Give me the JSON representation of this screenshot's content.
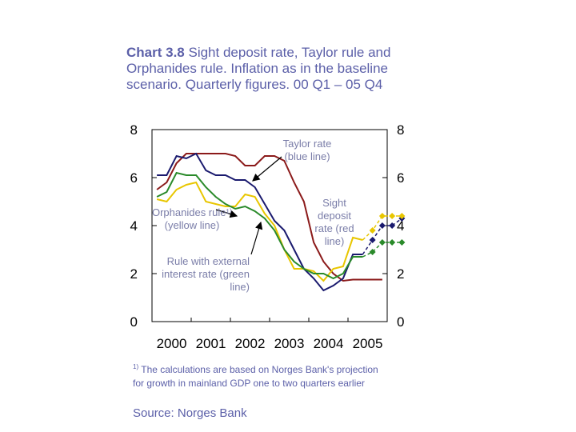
{
  "title": {
    "bold": "Chart 3.8",
    "rest": "Sight deposit rate, Taylor rule and Orphanides rule. Inflation as in the baseline scenario. Quarterly figures. 00 Q1 – 05 Q4"
  },
  "footnote": {
    "marker": "1)",
    "text": "The calculations are based on Norges Bank's projection for growth in mainland GDP one to two quarters earlier"
  },
  "source": "Source: Norges Bank",
  "annotations": {
    "taylor": [
      "Taylor rate",
      "(blue line)"
    ],
    "orphanides": [
      "Orphanides rule¹⁾",
      "(yellow line)"
    ],
    "external": [
      "Rule with external",
      "interest rate (green",
      "line)"
    ],
    "sight": [
      "Sight",
      "deposit",
      "rate (red",
      "line)"
    ]
  },
  "chart_data": {
    "type": "line",
    "x_start": 2000,
    "points_per_year": 4,
    "xticks": [
      "2000",
      "2001",
      "2002",
      "2003",
      "2004",
      "2005"
    ],
    "ylim": [
      0,
      8
    ],
    "yticks": [
      0,
      2,
      4,
      6,
      8
    ],
    "grid": false,
    "series": [
      {
        "name": "Sight deposit rate",
        "color": "#8b1a1a",
        "values": [
          5.5,
          5.8,
          6.6,
          7.0,
          7.0,
          7.0,
          7.0,
          7.0,
          6.9,
          6.5,
          6.5,
          6.9,
          6.9,
          6.7,
          5.8,
          5.0,
          3.3,
          2.5,
          2.0,
          1.7,
          1.75,
          1.75,
          1.75,
          1.75
        ],
        "projection_start": null
      },
      {
        "name": "Taylor rate",
        "color": "#1a1a6e",
        "values": [
          6.1,
          6.1,
          6.9,
          6.8,
          7.0,
          6.3,
          6.1,
          6.1,
          5.9,
          5.9,
          5.6,
          4.9,
          4.2,
          3.8,
          3.0,
          2.2,
          1.8,
          1.3,
          1.5,
          1.8,
          2.8,
          2.8,
          3.4,
          4.0,
          4.0,
          4.3
        ],
        "projection_start": 22
      },
      {
        "name": "Orphanides rule",
        "color": "#e8c600",
        "values": [
          5.1,
          5.0,
          5.5,
          5.7,
          5.8,
          5.0,
          4.9,
          4.8,
          4.8,
          5.3,
          5.2,
          4.5,
          4.0,
          3.0,
          2.2,
          2.2,
          2.1,
          1.7,
          2.2,
          2.3,
          3.5,
          3.4,
          3.8,
          4.4,
          4.4,
          4.4
        ],
        "projection_start": 22
      },
      {
        "name": "Rule with external interest rate",
        "color": "#2a8a2a",
        "values": [
          5.2,
          5.4,
          6.2,
          6.1,
          6.1,
          5.6,
          5.2,
          4.9,
          4.7,
          4.8,
          4.6,
          4.3,
          3.8,
          3.0,
          2.5,
          2.2,
          2.0,
          2.0,
          1.8,
          2.0,
          2.7,
          2.7,
          2.9,
          3.3,
          3.3,
          3.3
        ],
        "projection_start": 22
      }
    ]
  }
}
